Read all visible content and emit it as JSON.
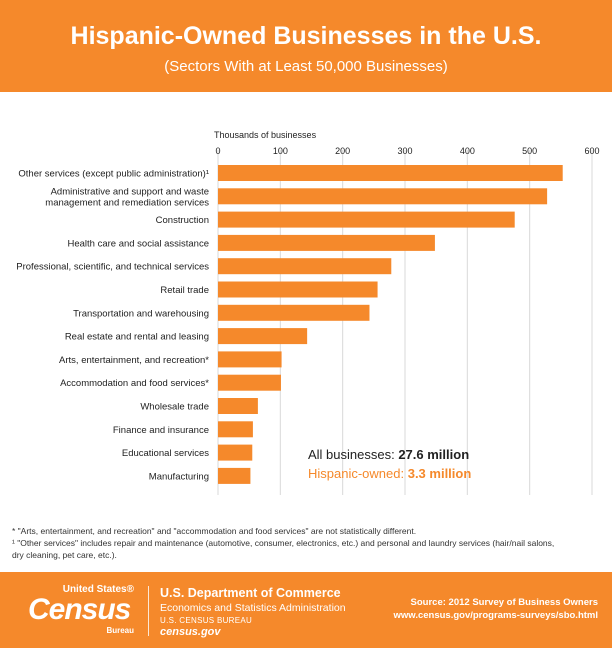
{
  "header": {
    "title": "Hispanic-Owned Businesses in the U.S.",
    "subtitle": "(Sectors With at Least 50,000 Businesses)"
  },
  "chart_data": {
    "type": "bar",
    "orientation": "horizontal",
    "xlabel": "Thousands of businesses",
    "xlim": [
      0,
      600
    ],
    "xticks": [
      0,
      100,
      200,
      300,
      400,
      500,
      600
    ],
    "grid": true,
    "bar_color": "#f5892b",
    "categories": [
      "Other services (except public administration)¹",
      "Administrative and support and waste management and remediation services",
      "Construction",
      "Health care and social assistance",
      "Professional, scientific, and technical services",
      "Retail trade",
      "Transportation and warehousing",
      "Real estate and rental and leasing",
      "Arts, entertainment, and recreation*",
      "Accommodation and food services*",
      "Wholesale trade",
      "Finance and insurance",
      "Educational services",
      "Manufacturing"
    ],
    "label_lines": [
      [
        "Other services (except public administration)¹"
      ],
      [
        "Administrative and support and waste",
        "management and remediation services"
      ],
      [
        "Construction"
      ],
      [
        "Health care and social assistance"
      ],
      [
        "Professional, scientific, and technical services"
      ],
      [
        "Retail trade"
      ],
      [
        "Transportation and warehousing"
      ],
      [
        "Real estate and rental and leasing"
      ],
      [
        "Arts, entertainment, and recreation*"
      ],
      [
        "Accommodation and food services*"
      ],
      [
        "Wholesale trade"
      ],
      [
        "Finance and insurance"
      ],
      [
        "Educational services"
      ],
      [
        "Manufacturing"
      ]
    ],
    "values": [
      553,
      528,
      476,
      348,
      278,
      256,
      243,
      143,
      102,
      101,
      64,
      56,
      55,
      52
    ],
    "annotations": [
      {
        "label": "All businesses:",
        "value": "27.6 million",
        "color": "#222222"
      },
      {
        "label": "Hispanic-owned:",
        "value": "3.3 million",
        "color": "#f5892b"
      }
    ]
  },
  "footnotes": [
    "* \"Arts, entertainment, and recreation\" and \"accommodation and food services\" are not statistically different.",
    "¹ \"Other services\" includes repair and maintenance (automotive, consumer, electronics, etc.) and personal and laundry services (hair/nail salons,",
    "dry cleaning, pet care, etc.)."
  ],
  "footer": {
    "logo_top": "United States®",
    "logo_main": "Census",
    "logo_bureau": "Bureau",
    "dept_line1": "U.S. Department of Commerce",
    "dept_line2": "Economics and Statistics Administration",
    "dept_line3": "U.S. CENSUS BUREAU",
    "dept_line4": "census.gov",
    "source_line1": "Source: 2012 Survey of Business Owners",
    "source_line2": "www.census.gov/programs-surveys/sbo.html"
  },
  "colors": {
    "accent": "#f5892b",
    "grid": "#d9d9d9"
  }
}
